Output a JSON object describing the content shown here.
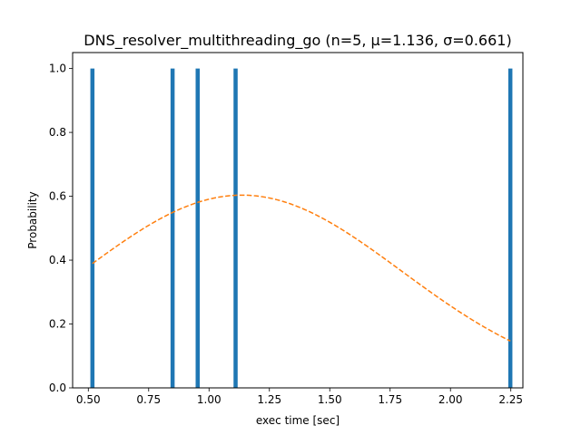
{
  "chart_data": {
    "type": "bar",
    "title": "DNS_resolver_multithreading_go (n=5, μ=1.136, σ=0.661)",
    "xlabel": "exec time [sec]",
    "ylabel": "Probability",
    "xlim": [
      0.435,
      2.3
    ],
    "ylim": [
      0,
      1.05
    ],
    "xticks": [
      0.5,
      0.75,
      1.0,
      1.25,
      1.5,
      1.75,
      2.0,
      2.25
    ],
    "xtick_labels": [
      "0.50",
      "0.75",
      "1.00",
      "1.25",
      "1.50",
      "1.75",
      "2.00",
      "2.25"
    ],
    "yticks": [
      0.0,
      0.2,
      0.4,
      0.6,
      0.8,
      1.0
    ],
    "ytick_labels": [
      "0.0",
      "0.2",
      "0.4",
      "0.6",
      "0.8",
      "1.0"
    ],
    "bars": {
      "color": "#1f77b4",
      "width": 0.017,
      "x": [
        0.517,
        0.849,
        0.953,
        1.11,
        2.248
      ],
      "values": [
        1.0,
        1.0,
        1.0,
        1.0,
        1.0
      ]
    },
    "fit": {
      "type": "normal-pdf",
      "mu": 1.136,
      "sigma": 0.661,
      "x_range": [
        0.517,
        2.248
      ],
      "color": "#ff7f0e",
      "linestyle": "dashed"
    },
    "grid": false,
    "legend": "none"
  }
}
